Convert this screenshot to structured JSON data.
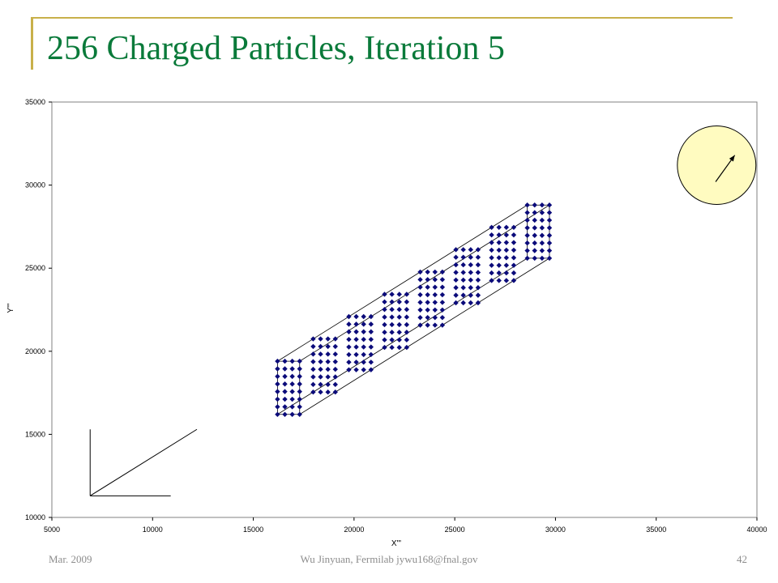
{
  "slide": {
    "title": "256 Charged Particles, Iteration 5",
    "footer_left": "Mar. 2009",
    "footer_center": "Wu Jinyuan, Fermilab jywu168@fnal.gov",
    "footer_right": "42"
  },
  "colors": {
    "title": "#0a7a3a",
    "accent": "#c8b04a",
    "marker": "#0b0b7a",
    "circle_fill": "#fffbc0"
  },
  "chart_data": {
    "type": "scatter",
    "xlabel": "X\"'",
    "ylabel": "Y\"'",
    "xlim": [
      5000,
      40000
    ],
    "ylim": [
      10000,
      35000
    ],
    "xticks": [
      "5000",
      "10000",
      "15000",
      "20000",
      "25000",
      "30000",
      "35000",
      "40000"
    ],
    "yticks": [
      "10000",
      "15000",
      "20000",
      "25000",
      "30000",
      "35000"
    ],
    "grid": false,
    "marker": "diamond",
    "cluster": {
      "x_range": [
        16200,
        29700
      ],
      "y_range": [
        16200,
        28800
      ],
      "front_face": {
        "x": [
          16200,
          17300
        ],
        "y": [
          16200,
          19400
        ]
      },
      "back_face": {
        "x": [
          28600,
          29700
        ],
        "y": [
          25600,
          28800
        ]
      },
      "grid_size": [
        8,
        8,
        4
      ],
      "point_count": 256
    },
    "annotations": [
      {
        "type": "coordinate_axes",
        "origin": [
          6900,
          11300
        ],
        "x_arm_end": [
          10900,
          11300
        ],
        "y_arm_end": [
          6900,
          15300
        ],
        "diag_end": [
          12200,
          15300
        ]
      },
      {
        "type": "circle_with_arrow",
        "center": [
          38000,
          31200
        ],
        "radius_x": 1950,
        "arrow_from": [
          37950,
          30200
        ],
        "arrow_to": [
          38900,
          31800
        ]
      }
    ]
  }
}
